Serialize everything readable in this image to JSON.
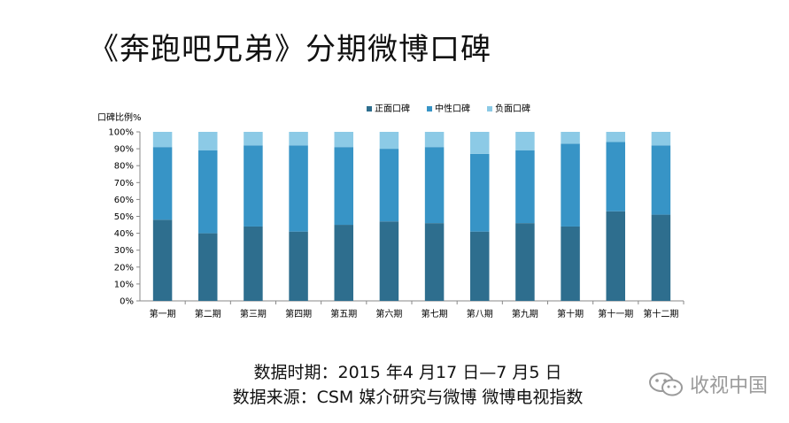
{
  "title": "《奔跑吧兄弟》分期微博口碑",
  "footer": {
    "line1": "数据时期：2015 年4 月17 日—7 月5 日",
    "line2": "数据来源：CSM 媒介研究与微博 微博电视指数"
  },
  "watermark": {
    "text": "收视中国",
    "icon": "wechat-icon"
  },
  "chart_data": {
    "type": "bar",
    "stacked": true,
    "ylabel": "口碑比例%",
    "ylim": [
      0,
      100
    ],
    "yticks": [
      "0%",
      "10%",
      "20%",
      "30%",
      "40%",
      "50%",
      "60%",
      "70%",
      "80%",
      "90%",
      "100%"
    ],
    "legend_position": "top-right",
    "categories": [
      "第一期",
      "第二期",
      "第三期",
      "第四期",
      "第五期",
      "第六期",
      "第七期",
      "第八期",
      "第九期",
      "第十期",
      "第十一期",
      "第十二期"
    ],
    "series": [
      {
        "name": "正面口碑",
        "color": "#2e6e8e",
        "values": [
          48,
          40,
          44,
          41,
          45,
          47,
          46,
          41,
          46,
          44,
          53,
          51
        ]
      },
      {
        "name": "中性口碑",
        "color": "#3794c6",
        "values": [
          43,
          49,
          48,
          51,
          46,
          43,
          45,
          46,
          43,
          49,
          41,
          41
        ]
      },
      {
        "name": "负面口碑",
        "color": "#8ccae6",
        "values": [
          9,
          11,
          8,
          8,
          9,
          10,
          9,
          13,
          11,
          7,
          6,
          8
        ]
      }
    ]
  }
}
